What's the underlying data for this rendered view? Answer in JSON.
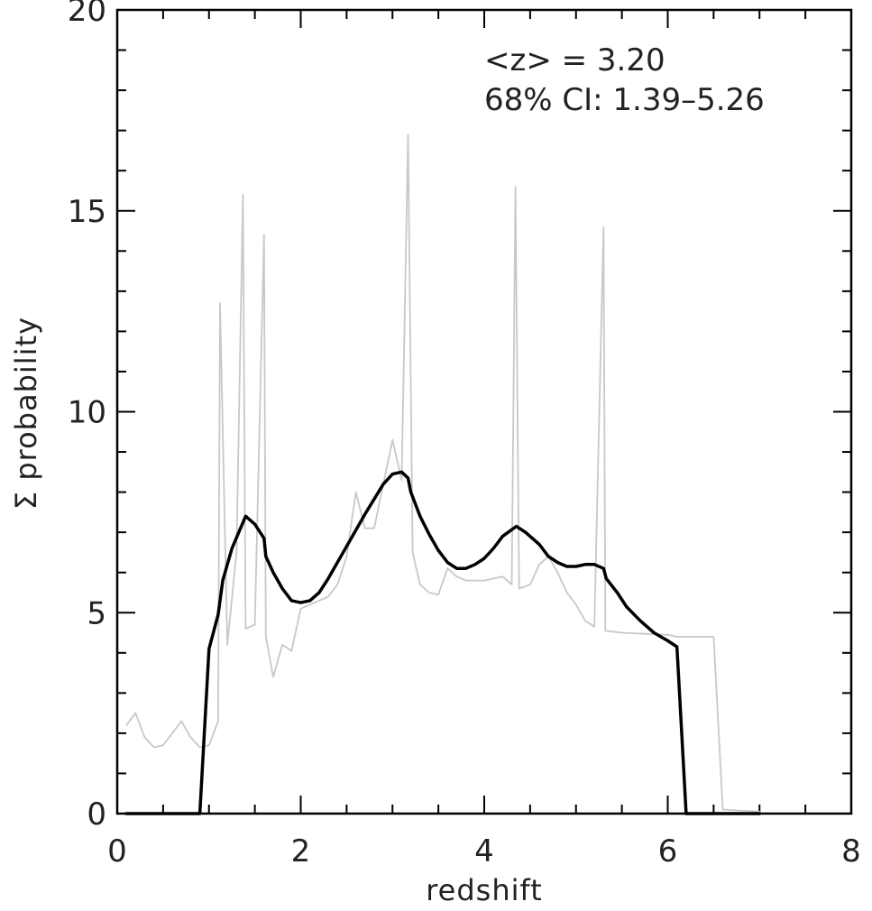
{
  "chart_data": {
    "type": "line",
    "xlabel": "redshift",
    "ylabel": "Σ probability",
    "xlim": [
      0,
      8
    ],
    "ylim": [
      0,
      20
    ],
    "xticks": [
      0,
      2,
      4,
      6,
      8
    ],
    "yticks": [
      0,
      5,
      10,
      15,
      20
    ],
    "grid": false,
    "annotations": [
      "<z> = 3.20",
      "68% CI: 1.39–5.26"
    ],
    "series": [
      {
        "color": "#c8c8c8",
        "values": [
          [
            0.1,
            2.2
          ],
          [
            0.2,
            2.5
          ],
          [
            0.3,
            1.9
          ],
          [
            0.4,
            1.65
          ],
          [
            0.5,
            1.7
          ],
          [
            0.7,
            2.3
          ],
          [
            0.8,
            1.9
          ],
          [
            0.9,
            1.65
          ],
          [
            1.0,
            1.7
          ],
          [
            1.1,
            2.3
          ],
          [
            1.12,
            12.7
          ],
          [
            1.2,
            4.2
          ],
          [
            1.3,
            6.5
          ],
          [
            1.37,
            15.4
          ],
          [
            1.4,
            4.6
          ],
          [
            1.5,
            4.7
          ],
          [
            1.6,
            14.4
          ],
          [
            1.62,
            4.4
          ],
          [
            1.7,
            3.4
          ],
          [
            1.8,
            4.2
          ],
          [
            1.9,
            4.05
          ],
          [
            2.0,
            5.1
          ],
          [
            2.2,
            5.3
          ],
          [
            2.3,
            5.4
          ],
          [
            2.4,
            5.7
          ],
          [
            2.5,
            6.4
          ],
          [
            2.6,
            8.0
          ],
          [
            2.7,
            7.1
          ],
          [
            2.8,
            7.1
          ],
          [
            3.0,
            9.3
          ],
          [
            3.1,
            8.3
          ],
          [
            3.17,
            16.9
          ],
          [
            3.22,
            6.5
          ],
          [
            3.3,
            5.7
          ],
          [
            3.4,
            5.5
          ],
          [
            3.5,
            5.45
          ],
          [
            3.6,
            6.1
          ],
          [
            3.7,
            5.9
          ],
          [
            3.8,
            5.8
          ],
          [
            4.0,
            5.8
          ],
          [
            4.2,
            5.9
          ],
          [
            4.3,
            5.7
          ],
          [
            4.34,
            15.6
          ],
          [
            4.38,
            5.6
          ],
          [
            4.5,
            5.7
          ],
          [
            4.6,
            6.2
          ],
          [
            4.7,
            6.4
          ],
          [
            4.8,
            6.0
          ],
          [
            4.9,
            5.5
          ],
          [
            5.0,
            5.2
          ],
          [
            5.1,
            4.8
          ],
          [
            5.2,
            4.65
          ],
          [
            5.3,
            14.6
          ],
          [
            5.32,
            4.55
          ],
          [
            5.5,
            4.5
          ],
          [
            6.0,
            4.45
          ],
          [
            6.1,
            4.4
          ],
          [
            6.5,
            4.4
          ],
          [
            6.6,
            0.1
          ],
          [
            7.0,
            0.05
          ]
        ]
      },
      {
        "color": "#000000",
        "values": [
          [
            0.1,
            0.0
          ],
          [
            0.9,
            0.0
          ],
          [
            1.0,
            4.1
          ],
          [
            1.1,
            4.95
          ],
          [
            1.15,
            5.8
          ],
          [
            1.25,
            6.6
          ],
          [
            1.4,
            7.4
          ],
          [
            1.5,
            7.2
          ],
          [
            1.6,
            6.85
          ],
          [
            1.62,
            6.4
          ],
          [
            1.7,
            6.0
          ],
          [
            1.8,
            5.6
          ],
          [
            1.9,
            5.3
          ],
          [
            2.0,
            5.25
          ],
          [
            2.1,
            5.3
          ],
          [
            2.2,
            5.5
          ],
          [
            2.3,
            5.85
          ],
          [
            2.5,
            6.65
          ],
          [
            2.7,
            7.45
          ],
          [
            2.9,
            8.2
          ],
          [
            3.0,
            8.45
          ],
          [
            3.1,
            8.5
          ],
          [
            3.17,
            8.35
          ],
          [
            3.2,
            8.0
          ],
          [
            3.3,
            7.4
          ],
          [
            3.4,
            6.95
          ],
          [
            3.5,
            6.55
          ],
          [
            3.6,
            6.25
          ],
          [
            3.7,
            6.1
          ],
          [
            3.8,
            6.1
          ],
          [
            3.9,
            6.2
          ],
          [
            4.0,
            6.35
          ],
          [
            4.1,
            6.6
          ],
          [
            4.2,
            6.9
          ],
          [
            4.35,
            7.15
          ],
          [
            4.45,
            7.0
          ],
          [
            4.6,
            6.7
          ],
          [
            4.7,
            6.4
          ],
          [
            4.8,
            6.25
          ],
          [
            4.9,
            6.15
          ],
          [
            5.0,
            6.15
          ],
          [
            5.1,
            6.2
          ],
          [
            5.2,
            6.2
          ],
          [
            5.3,
            6.1
          ],
          [
            5.33,
            5.85
          ],
          [
            5.45,
            5.5
          ],
          [
            5.55,
            5.15
          ],
          [
            5.7,
            4.8
          ],
          [
            5.85,
            4.5
          ],
          [
            6.0,
            4.3
          ],
          [
            6.1,
            4.15
          ],
          [
            6.2,
            0.0
          ],
          [
            7.0,
            0.0
          ]
        ]
      }
    ]
  }
}
